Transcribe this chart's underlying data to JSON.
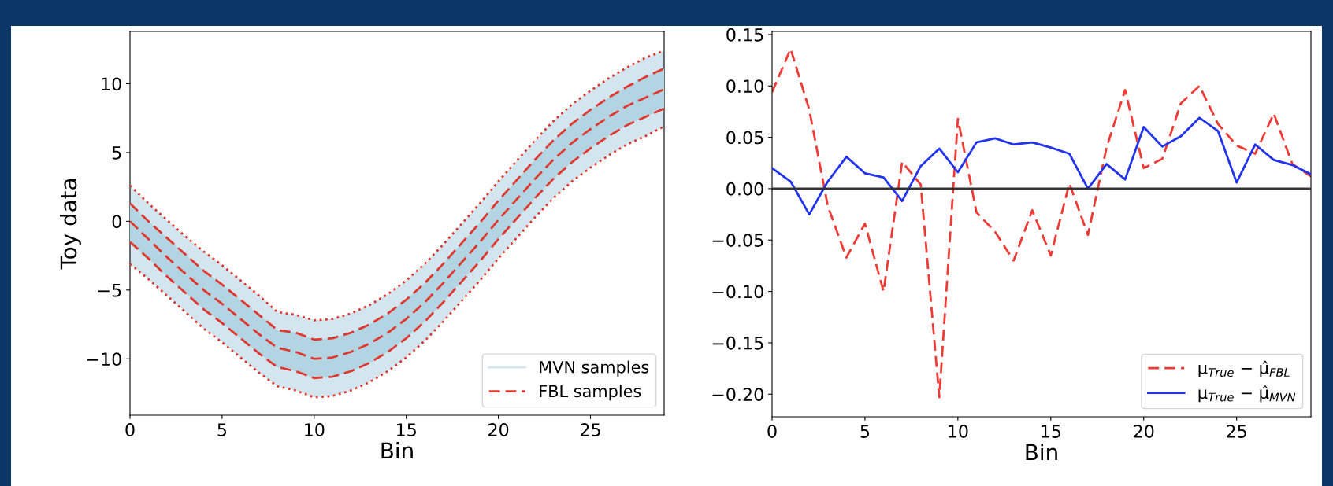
{
  "chart_data": [
    {
      "type": "line",
      "xlabel": "Bin",
      "ylabel": "Toy data",
      "x": [
        0,
        1,
        2,
        3,
        4,
        5,
        6,
        7,
        8,
        9,
        10,
        11,
        12,
        13,
        14,
        15,
        16,
        17,
        18,
        19,
        20,
        21,
        22,
        23,
        24,
        25,
        26,
        27,
        28,
        29
      ],
      "xlim": [
        0,
        29
      ],
      "xticks": [
        0,
        5,
        10,
        15,
        20,
        25
      ],
      "ylim": [
        -14.1,
        13.8
      ],
      "yticks": [
        {
          "value": -10,
          "label": "−10"
        },
        {
          "value": -5,
          "label": "−5"
        },
        0,
        5,
        10
      ],
      "grid": false,
      "legend": "bottom right",
      "series": [
        {
          "name": "MVN samples",
          "color": "#d3e6ef",
          "values": [
            null,
            null,
            null,
            null,
            null,
            null,
            null,
            null,
            null,
            null,
            null,
            null,
            null,
            null,
            null,
            null,
            null,
            null,
            null,
            null,
            null,
            null,
            null,
            null,
            null,
            null,
            null,
            null,
            null,
            null
          ],
          "lower": [
            -3.1,
            -4.2,
            -5.4,
            -6.6,
            -7.8,
            -8.8,
            -9.9,
            -11.0,
            -12.0,
            -12.3,
            -12.8,
            -12.7,
            -12.3,
            -11.7,
            -10.9,
            -9.9,
            -8.7,
            -7.3,
            -5.8,
            -4.3,
            -2.7,
            -1.2,
            0.3,
            1.7,
            2.9,
            3.9,
            4.8,
            5.6,
            6.2,
            6.9
          ],
          "upper": [
            2.6,
            1.3,
            0.1,
            -1.1,
            -2.2,
            -3.2,
            -4.3,
            -5.4,
            -6.6,
            -6.8,
            -7.2,
            -7.1,
            -6.7,
            -6.1,
            -5.3,
            -4.3,
            -3.1,
            -1.7,
            -0.2,
            1.3,
            2.9,
            4.4,
            5.9,
            7.3,
            8.5,
            9.5,
            10.4,
            11.2,
            11.9,
            12.4
          ]
        },
        {
          "color": "#b3d4e3",
          "values": [
            null,
            null,
            null,
            null,
            null,
            null,
            null,
            null,
            null,
            null,
            null,
            null,
            null,
            null,
            null,
            null,
            null,
            null,
            null,
            null,
            null,
            null,
            null,
            null,
            null,
            null,
            null,
            null,
            null,
            null
          ],
          "lower": [
            -1.5,
            -2.7,
            -4.0,
            -5.2,
            -6.4,
            -7.4,
            -8.5,
            -9.6,
            -10.6,
            -10.9,
            -11.4,
            -11.3,
            -10.9,
            -10.3,
            -9.5,
            -8.5,
            -7.3,
            -5.9,
            -4.4,
            -2.9,
            -1.3,
            0.2,
            1.7,
            3.1,
            4.3,
            5.3,
            6.2,
            7.0,
            7.6,
            8.2
          ],
          "upper": [
            1.3,
            0.0,
            -1.2,
            -2.4,
            -3.6,
            -4.6,
            -5.7,
            -6.8,
            -7.9,
            -8.1,
            -8.6,
            -8.5,
            -8.1,
            -7.5,
            -6.7,
            -5.7,
            -4.5,
            -3.1,
            -1.6,
            -0.1,
            1.5,
            3.0,
            4.5,
            5.9,
            7.1,
            8.1,
            9.0,
            9.8,
            10.5,
            11.1
          ]
        },
        {
          "name": "FBL samples",
          "color": "#e0382e",
          "line_style": "dashed",
          "values": [
            0,
            -1.3,
            -2.6,
            -3.8,
            -5.0,
            -6.0,
            -7.1,
            -8.2,
            -9.2,
            -9.5,
            -10.0,
            -9.9,
            -9.5,
            -8.9,
            -8.1,
            -7.1,
            -5.9,
            -4.5,
            -3.0,
            -1.5,
            0.1,
            1.6,
            3.1,
            4.5,
            5.7,
            6.7,
            7.6,
            8.4,
            9.0,
            9.6
          ]
        },
        {
          "color": "#e0382e",
          "line_style": "dashed",
          "values": [
            1.3,
            0.0,
            -1.2,
            -2.4,
            -3.6,
            -4.6,
            -5.7,
            -6.8,
            -7.9,
            -8.1,
            -8.6,
            -8.5,
            -8.1,
            -7.5,
            -6.7,
            -5.7,
            -4.5,
            -3.1,
            -1.6,
            -0.1,
            1.5,
            3.0,
            4.5,
            5.9,
            7.1,
            8.1,
            9.0,
            9.8,
            10.5,
            11.1
          ]
        },
        {
          "color": "#e0382e",
          "line_style": "dashed",
          "values": [
            -1.5,
            -2.7,
            -4.0,
            -5.2,
            -6.4,
            -7.4,
            -8.5,
            -9.6,
            -10.6,
            -10.9,
            -11.4,
            -11.3,
            -10.9,
            -10.3,
            -9.5,
            -8.5,
            -7.3,
            -5.9,
            -4.4,
            -2.9,
            -1.3,
            0.2,
            1.7,
            3.1,
            4.3,
            5.3,
            6.2,
            7.0,
            7.6,
            8.2
          ]
        },
        {
          "color": "#e0382e",
          "line_style": "dotted",
          "values": [
            2.6,
            1.3,
            0.1,
            -1.1,
            -2.2,
            -3.2,
            -4.3,
            -5.4,
            -6.6,
            -6.8,
            -7.2,
            -7.1,
            -6.7,
            -6.1,
            -5.3,
            -4.3,
            -3.1,
            -1.7,
            -0.2,
            1.3,
            2.9,
            4.4,
            5.9,
            7.3,
            8.5,
            9.5,
            10.4,
            11.2,
            11.9,
            12.4
          ]
        },
        {
          "color": "#e0382e",
          "line_style": "dotted",
          "values": [
            -3.1,
            -4.2,
            -5.4,
            -6.6,
            -7.8,
            -8.8,
            -9.9,
            -11.0,
            -12.0,
            -12.3,
            -12.8,
            -12.7,
            -12.3,
            -11.7,
            -10.9,
            -9.9,
            -8.7,
            -7.3,
            -5.8,
            -4.3,
            -2.7,
            -1.2,
            0.3,
            1.7,
            2.9,
            3.9,
            4.8,
            5.6,
            6.2,
            6.9
          ]
        }
      ]
    },
    {
      "type": "line",
      "xlabel": "Bin",
      "x": [
        0,
        1,
        2,
        3,
        4,
        5,
        6,
        7,
        8,
        9,
        10,
        11,
        12,
        13,
        14,
        15,
        16,
        17,
        18,
        19,
        20,
        21,
        22,
        23,
        24,
        25,
        26,
        27,
        28,
        29
      ],
      "xlim": [
        0,
        29
      ],
      "xticks": [
        0,
        5,
        10,
        15,
        20,
        25
      ],
      "ylim": [
        -0.222,
        0.153
      ],
      "yticks": [
        {
          "value": -0.2,
          "label": "−0.20"
        },
        {
          "value": -0.15,
          "label": "−0.15"
        },
        {
          "value": -0.1,
          "label": "−0.10"
        },
        {
          "value": -0.05,
          "label": "−0.05"
        },
        {
          "value": 0,
          "label": "0.00"
        },
        {
          "value": 0.05,
          "label": "0.05"
        },
        {
          "value": 0.1,
          "label": "0.10"
        },
        {
          "value": 0.15,
          "label": "0.15"
        }
      ],
      "grid": false,
      "legend": "bottom right",
      "ref_lines": [
        {
          "axis": "y",
          "value": 0,
          "color": "#333333"
        }
      ],
      "series": [
        {
          "name": "μ$_{True}$ − μ̂$_{FBL}$",
          "color": "#ee3b36",
          "line_style": "dashed",
          "values": [
            0.094,
            0.136,
            0.077,
            -0.017,
            -0.067,
            -0.034,
            -0.1,
            0.026,
            0.004,
            -0.203,
            0.068,
            -0.023,
            -0.042,
            -0.07,
            -0.021,
            -0.065,
            0.005,
            -0.045,
            0.04,
            0.096,
            0.02,
            0.029,
            0.083,
            0.1,
            0.063,
            0.042,
            0.034,
            0.073,
            0.024,
            0.012
          ]
        },
        {
          "name": "μ$_{True}$ − μ̂$_{MVN}$",
          "color": "#2233ee",
          "line_style": "solid",
          "values": [
            0.02,
            0.007,
            -0.025,
            0.007,
            0.031,
            0.015,
            0.011,
            -0.012,
            0.022,
            0.039,
            0.016,
            0.045,
            0.049,
            0.043,
            0.045,
            0.04,
            0.034,
            0.0,
            0.024,
            0.009,
            0.06,
            0.041,
            0.051,
            0.069,
            0.056,
            0.006,
            0.043,
            0.028,
            0.023,
            0.014
          ]
        }
      ]
    }
  ]
}
